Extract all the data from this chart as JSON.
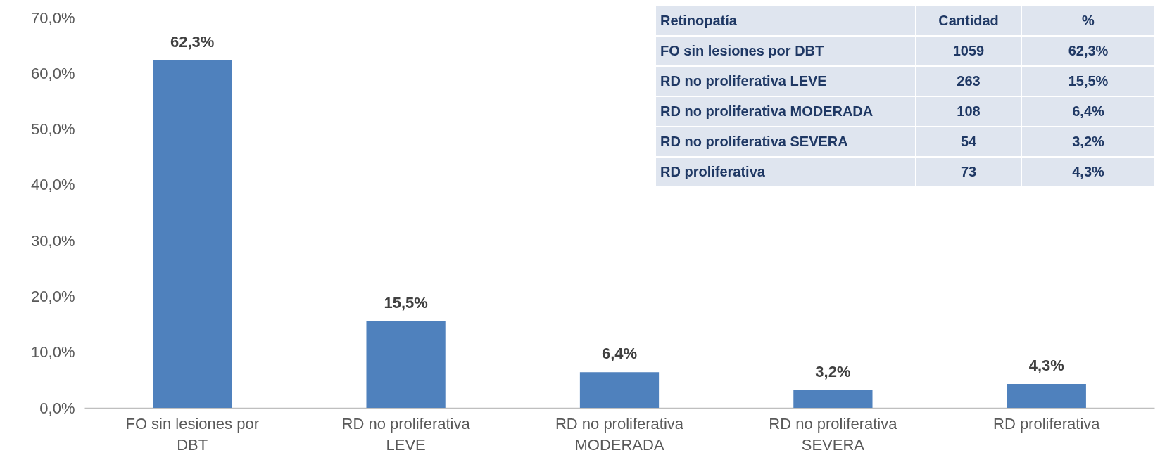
{
  "chart_data": {
    "type": "bar",
    "categories": [
      "FO sin lesiones por DBT",
      "RD no proliferativa LEVE",
      "RD no proliferativa MODERADA",
      "RD no proliferativa SEVERA",
      "RD proliferativa"
    ],
    "values": [
      62.3,
      15.5,
      6.4,
      3.2,
      4.3
    ],
    "value_labels": [
      "62,3%",
      "15,5%",
      "6,4%",
      "3,2%",
      "4,3%"
    ],
    "color": "#4f81bd",
    "ylim": [
      0,
      70
    ],
    "yticks": [
      {
        "value": 0,
        "label": "0,0%"
      },
      {
        "value": 10,
        "label": "10,0%"
      },
      {
        "value": 20,
        "label": "20,0%"
      },
      {
        "value": 30,
        "label": "30,0%"
      },
      {
        "value": 40,
        "label": "40,0%"
      },
      {
        "value": 50,
        "label": "50,0%"
      },
      {
        "value": 60,
        "label": "60,0%"
      },
      {
        "value": 70,
        "label": "70,0%"
      }
    ],
    "grid": false,
    "annotations": [
      "Retinopatía",
      "Cantidad",
      "%",
      "FO sin lesiones por DBT",
      "1059",
      "62,3%",
      "RD no proliferativa LEVE",
      "263",
      "15,5%",
      "RD no proliferativa MODERADA",
      "108",
      "6,4%",
      "RD no proliferativa SEVERA",
      "54",
      "3,2%",
      "RD proliferativa",
      "73",
      "4,3%"
    ]
  }
}
